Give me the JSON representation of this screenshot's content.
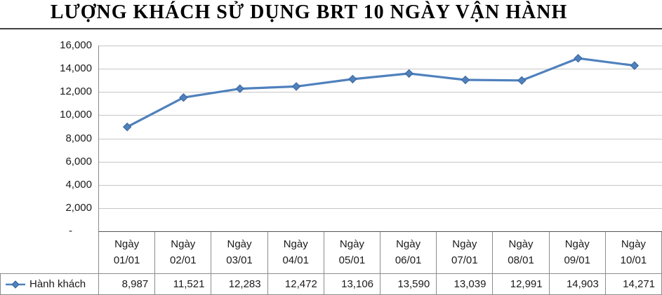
{
  "chart_data": {
    "type": "line",
    "title": "LƯỢNG KHÁCH SỬ DỤNG BRT 10 NGÀY VẬN HÀNH",
    "categories": [
      {
        "top": "Ngày",
        "bottom": "01/01"
      },
      {
        "top": "Ngày",
        "bottom": "02/01"
      },
      {
        "top": "Ngày",
        "bottom": "03/01"
      },
      {
        "top": "Ngày",
        "bottom": "04/01"
      },
      {
        "top": "Ngày",
        "bottom": "05/01"
      },
      {
        "top": "Ngày",
        "bottom": "06/01"
      },
      {
        "top": "Ngày",
        "bottom": "07/01"
      },
      {
        "top": "Ngày",
        "bottom": "08/01"
      },
      {
        "top": "Ngày",
        "bottom": "09/01"
      },
      {
        "top": "Ngày",
        "bottom": "10/01"
      }
    ],
    "series": [
      {
        "name": "Hành khách",
        "values": [
          8987,
          11521,
          12283,
          12472,
          13106,
          13590,
          13039,
          12991,
          14903,
          14271
        ]
      }
    ],
    "value_labels": [
      "8,987",
      "11,521",
      "12,283",
      "12,472",
      "13,106",
      "13,590",
      "13,039",
      "12,991",
      "14,903",
      "14,271"
    ],
    "ylim": [
      0,
      16000
    ],
    "y_ticks": [
      {
        "v": 16000,
        "label": "16,000"
      },
      {
        "v": 14000,
        "label": "14,000"
      },
      {
        "v": 12000,
        "label": "12,000"
      },
      {
        "v": 10000,
        "label": "10,000"
      },
      {
        "v": 8000,
        "label": "8,000"
      },
      {
        "v": 6000,
        "label": "6,000"
      },
      {
        "v": 4000,
        "label": "4,000"
      },
      {
        "v": 2000,
        "label": "2,000"
      },
      {
        "v": 0,
        "label": "-"
      }
    ],
    "grid": true,
    "legend_position": "table-left",
    "colors": {
      "line": "#4f81bd",
      "marker": "#4f81bd",
      "marker_stroke": "#38639a",
      "grid": "#c6c6c6",
      "axis": "#898989",
      "table_border": "#8c8c8c"
    }
  }
}
